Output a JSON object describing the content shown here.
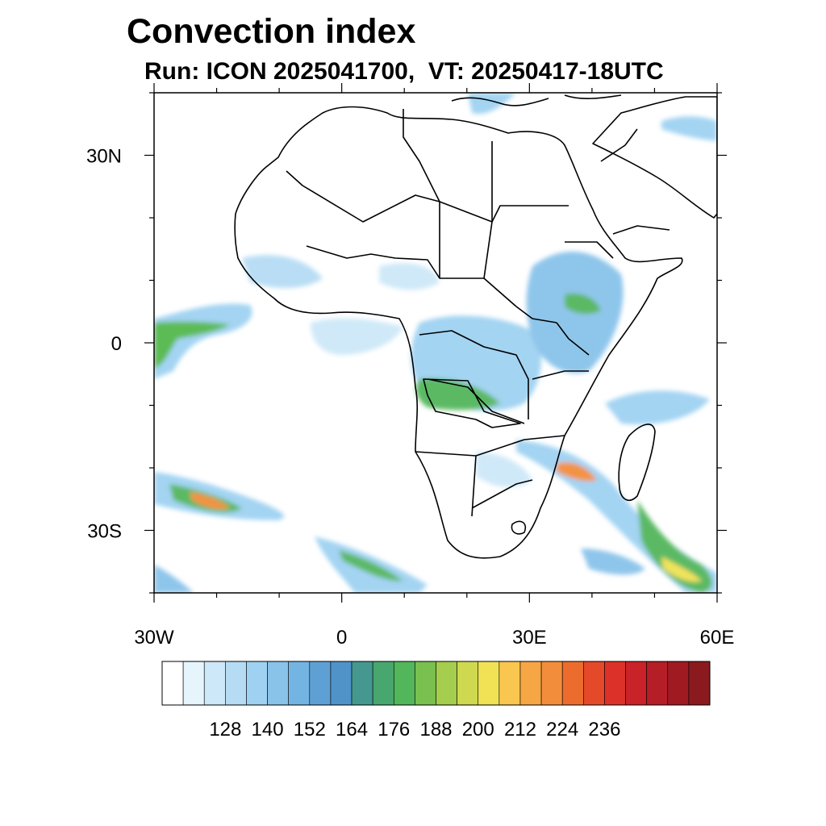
{
  "title": "Convection index",
  "subtitle": "Run: ICON 2025041700,  VT: 20250417-18UTC",
  "map": {
    "region": "Africa",
    "lon_range": [
      -30,
      60
    ],
    "lat_range": [
      -40,
      40
    ],
    "x_ticks": [
      {
        "value": -30,
        "label": "30W"
      },
      {
        "value": 0,
        "label": "0"
      },
      {
        "value": 30,
        "label": "30E"
      },
      {
        "value": 60,
        "label": "60E"
      }
    ],
    "y_ticks": [
      {
        "value": 30,
        "label": "30N"
      },
      {
        "value": 0,
        "label": "0"
      },
      {
        "value": -30,
        "label": "30S"
      }
    ],
    "colors": {
      "border": "#000000",
      "light": "#b6dcf2",
      "blue": "#6fb2e0",
      "teal": "#4a9b8c",
      "green": "#55b84e",
      "yellow": "#ecd84f",
      "orange": "#ef8a3b",
      "red": "#d8312b"
    }
  },
  "colorbar": {
    "labels": [
      "128",
      "140",
      "152",
      "164",
      "176",
      "188",
      "200",
      "212",
      "224",
      "236"
    ],
    "colors": [
      "#ffffff",
      "#e6f4fc",
      "#cde8f8",
      "#b6dcf4",
      "#9fd2f2",
      "#89c3ea",
      "#74b4e2",
      "#5fa0d4",
      "#4f93c8",
      "#45988f",
      "#48a76f",
      "#52b65b",
      "#79c050",
      "#a5cd4e",
      "#cfd94f",
      "#f0e254",
      "#f9c74f",
      "#f7a645",
      "#f28e3b",
      "#ec6c2e",
      "#e4492a",
      "#dc3129",
      "#c92228",
      "#b51e26",
      "#a01a22",
      "#8a1a1e"
    ]
  }
}
